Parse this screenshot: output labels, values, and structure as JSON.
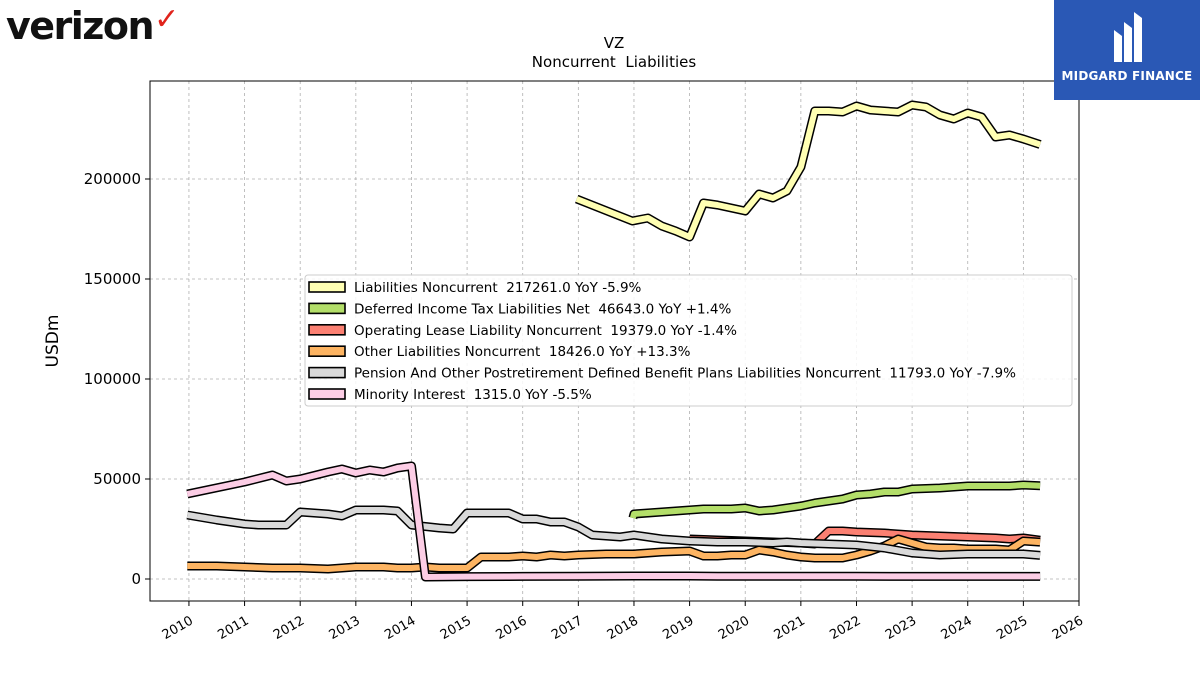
{
  "brand": {
    "company_logo": "verizon",
    "publisher_logo": "MIDGARD FINANCE",
    "accent": "#e0231b",
    "publisher_color": "#2a58b5"
  },
  "chart_data": {
    "type": "line",
    "title": "VZ",
    "subtitle": "Noncurrent  Liabilities",
    "xlabel": "",
    "ylabel": "USDm",
    "xlim": [
      2009.3,
      2026.0
    ],
    "ylim": [
      -11000,
      249000
    ],
    "xticks": [
      "2010",
      "2011",
      "2012",
      "2013",
      "2014",
      "2015",
      "2016",
      "2017",
      "2018",
      "2019",
      "2020",
      "2021",
      "2022",
      "2023",
      "2024",
      "2025",
      "2026"
    ],
    "yticks": [
      "0",
      "50000",
      "100000",
      "150000",
      "200000"
    ],
    "grid": true,
    "legend_position": "center-right",
    "series": [
      {
        "name": "Liabilities Noncurrent  217261.0 YoY -5.9%",
        "color": "#ffffb3",
        "points": [
          [
            2016.97,
            190000
          ],
          [
            2017.97,
            179000
          ],
          [
            2018.25,
            180500
          ],
          [
            2018.5,
            176500
          ],
          [
            2018.75,
            174000
          ],
          [
            2019.0,
            171000
          ],
          [
            2019.25,
            188000
          ],
          [
            2019.5,
            187000
          ],
          [
            2019.75,
            185500
          ],
          [
            2020.0,
            184000
          ],
          [
            2020.25,
            192500
          ],
          [
            2020.5,
            190500
          ],
          [
            2020.75,
            194000
          ],
          [
            2021.0,
            206000
          ],
          [
            2021.25,
            234000
          ],
          [
            2021.5,
            234000
          ],
          [
            2021.75,
            233500
          ],
          [
            2022.0,
            236500
          ],
          [
            2022.25,
            234500
          ],
          [
            2022.5,
            234000
          ],
          [
            2022.75,
            233500
          ],
          [
            2023.0,
            237000
          ],
          [
            2023.25,
            236000
          ],
          [
            2023.5,
            232000
          ],
          [
            2023.75,
            230000
          ],
          [
            2024.0,
            233000
          ],
          [
            2024.25,
            231000
          ],
          [
            2024.5,
            221000
          ],
          [
            2024.75,
            222000
          ],
          [
            2025.0,
            220000
          ],
          [
            2025.3,
            217261
          ]
        ]
      },
      {
        "name": "Deferred Income Tax Liabilities Net  46643.0 YoY +1.4%",
        "color": "#b3de69",
        "points": [
          [
            2017.98,
            30500
          ],
          [
            2018.0,
            32500
          ],
          [
            2018.5,
            33500
          ],
          [
            2019.0,
            34500
          ],
          [
            2019.25,
            35000
          ],
          [
            2019.75,
            35000
          ],
          [
            2020.0,
            35500
          ],
          [
            2020.25,
            34000
          ],
          [
            2020.5,
            34500
          ],
          [
            2020.75,
            35500
          ],
          [
            2021.0,
            36500
          ],
          [
            2021.25,
            38000
          ],
          [
            2021.5,
            39000
          ],
          [
            2021.75,
            40000
          ],
          [
            2022.0,
            42000
          ],
          [
            2022.25,
            42500
          ],
          [
            2022.5,
            43500
          ],
          [
            2022.75,
            43500
          ],
          [
            2023.0,
            45000
          ],
          [
            2023.5,
            45500
          ],
          [
            2023.75,
            46000
          ],
          [
            2024.0,
            46500
          ],
          [
            2024.5,
            46500
          ],
          [
            2024.75,
            46500
          ],
          [
            2025.0,
            47000
          ],
          [
            2025.3,
            46643
          ]
        ]
      },
      {
        "name": "Operating Lease Liability Noncurrent  19379.0 YoY -1.4%",
        "color": "#fb8072",
        "points": [
          [
            2019.0,
            20000
          ],
          [
            2019.5,
            19500
          ],
          [
            2020.0,
            19000
          ],
          [
            2020.5,
            18500
          ],
          [
            2021.0,
            18000
          ],
          [
            2021.25,
            17500
          ],
          [
            2021.5,
            24000
          ],
          [
            2021.75,
            24000
          ],
          [
            2022.0,
            23500
          ],
          [
            2022.5,
            23000
          ],
          [
            2023.0,
            22000
          ],
          [
            2023.5,
            21500
          ],
          [
            2024.0,
            21000
          ],
          [
            2024.5,
            20500
          ],
          [
            2024.75,
            20000
          ],
          [
            2025.0,
            20500
          ],
          [
            2025.3,
            19379
          ]
        ]
      },
      {
        "name": "Other Liabilities Noncurrent  18426.0 YoY +13.3%",
        "color": "#fdb462",
        "points": [
          [
            2009.97,
            6500
          ],
          [
            2010.5,
            6500
          ],
          [
            2011.0,
            6000
          ],
          [
            2011.5,
            5500
          ],
          [
            2012.0,
            5500
          ],
          [
            2012.5,
            5000
          ],
          [
            2012.75,
            5500
          ],
          [
            2013.0,
            6000
          ],
          [
            2013.5,
            6000
          ],
          [
            2013.75,
            5500
          ],
          [
            2014.0,
            5500
          ],
          [
            2014.25,
            6000
          ],
          [
            2014.5,
            5500
          ],
          [
            2014.75,
            5500
          ],
          [
            2015.0,
            5500
          ],
          [
            2015.25,
            11000
          ],
          [
            2015.75,
            11000
          ],
          [
            2016.0,
            11500
          ],
          [
            2016.25,
            11000
          ],
          [
            2016.5,
            12000
          ],
          [
            2016.75,
            11500
          ],
          [
            2017.0,
            12000
          ],
          [
            2017.5,
            12500
          ],
          [
            2018.0,
            12500
          ],
          [
            2018.5,
            13500
          ],
          [
            2019.0,
            14000
          ],
          [
            2019.25,
            11500
          ],
          [
            2019.5,
            11500
          ],
          [
            2019.75,
            12000
          ],
          [
            2020.0,
            12000
          ],
          [
            2020.25,
            14500
          ],
          [
            2020.5,
            13500
          ],
          [
            2020.75,
            12000
          ],
          [
            2021.0,
            11000
          ],
          [
            2021.25,
            10500
          ],
          [
            2021.75,
            10500
          ],
          [
            2022.0,
            12000
          ],
          [
            2022.25,
            14000
          ],
          [
            2022.5,
            16500
          ],
          [
            2022.75,
            20000
          ],
          [
            2023.0,
            18000
          ],
          [
            2023.25,
            16000
          ],
          [
            2023.5,
            15500
          ],
          [
            2023.75,
            15500
          ],
          [
            2024.0,
            15000
          ],
          [
            2024.5,
            15000
          ],
          [
            2024.75,
            14500
          ],
          [
            2025.0,
            19000
          ],
          [
            2025.3,
            18426
          ]
        ]
      },
      {
        "name": "Pension And Other Postretirement Defined Benefit Plans Liabilities Noncurrent  11793.0 YoY -7.9%",
        "color": "#d9d9d9",
        "points": [
          [
            2009.97,
            32000
          ],
          [
            2010.5,
            29500
          ],
          [
            2011.0,
            27500
          ],
          [
            2011.25,
            27000
          ],
          [
            2011.75,
            27000
          ],
          [
            2012.0,
            33500
          ],
          [
            2012.25,
            33000
          ],
          [
            2012.5,
            32500
          ],
          [
            2012.75,
            31500
          ],
          [
            2013.0,
            34500
          ],
          [
            2013.5,
            34500
          ],
          [
            2013.75,
            34000
          ],
          [
            2014.0,
            27000
          ],
          [
            2014.5,
            25500
          ],
          [
            2014.75,
            25000
          ],
          [
            2015.0,
            33000
          ],
          [
            2015.5,
            33000
          ],
          [
            2015.75,
            33000
          ],
          [
            2016.0,
            30000
          ],
          [
            2016.25,
            30000
          ],
          [
            2016.5,
            28500
          ],
          [
            2016.75,
            28500
          ],
          [
            2017.0,
            26000
          ],
          [
            2017.25,
            22000
          ],
          [
            2017.5,
            21500
          ],
          [
            2017.75,
            21000
          ],
          [
            2018.0,
            22000
          ],
          [
            2018.25,
            21000
          ],
          [
            2018.5,
            20000
          ],
          [
            2018.75,
            19500
          ],
          [
            2019.0,
            19000
          ],
          [
            2019.5,
            18500
          ],
          [
            2020.0,
            18500
          ],
          [
            2020.5,
            18000
          ],
          [
            2020.75,
            18500
          ],
          [
            2021.0,
            18000
          ],
          [
            2021.5,
            17500
          ],
          [
            2022.0,
            17000
          ],
          [
            2022.5,
            15500
          ],
          [
            2023.0,
            13000
          ],
          [
            2023.5,
            12000
          ],
          [
            2024.0,
            12500
          ],
          [
            2024.5,
            12500
          ],
          [
            2025.0,
            12500
          ],
          [
            2025.3,
            11793
          ]
        ]
      },
      {
        "name": "Minority Interest  1315.0 YoY -5.5%",
        "color": "#fccde5",
        "points": [
          [
            2009.97,
            42500
          ],
          [
            2011.0,
            48500
          ],
          [
            2011.5,
            52000
          ],
          [
            2011.75,
            49000
          ],
          [
            2012.0,
            50000
          ],
          [
            2012.5,
            53500
          ],
          [
            2012.75,
            55000
          ],
          [
            2013.0,
            53000
          ],
          [
            2013.25,
            54500
          ],
          [
            2013.5,
            53500
          ],
          [
            2013.75,
            55500
          ],
          [
            2014.0,
            56500
          ],
          [
            2014.25,
            1000
          ],
          [
            2015.0,
            1200
          ],
          [
            2016.0,
            1300
          ],
          [
            2017.0,
            1400
          ],
          [
            2018.0,
            1500
          ],
          [
            2019.0,
            1500
          ],
          [
            2019.5,
            1400
          ],
          [
            2020.0,
            1400
          ],
          [
            2021.0,
            1400
          ],
          [
            2022.0,
            1400
          ],
          [
            2023.0,
            1300
          ],
          [
            2024.0,
            1300
          ],
          [
            2025.3,
            1315
          ]
        ]
      }
    ]
  }
}
